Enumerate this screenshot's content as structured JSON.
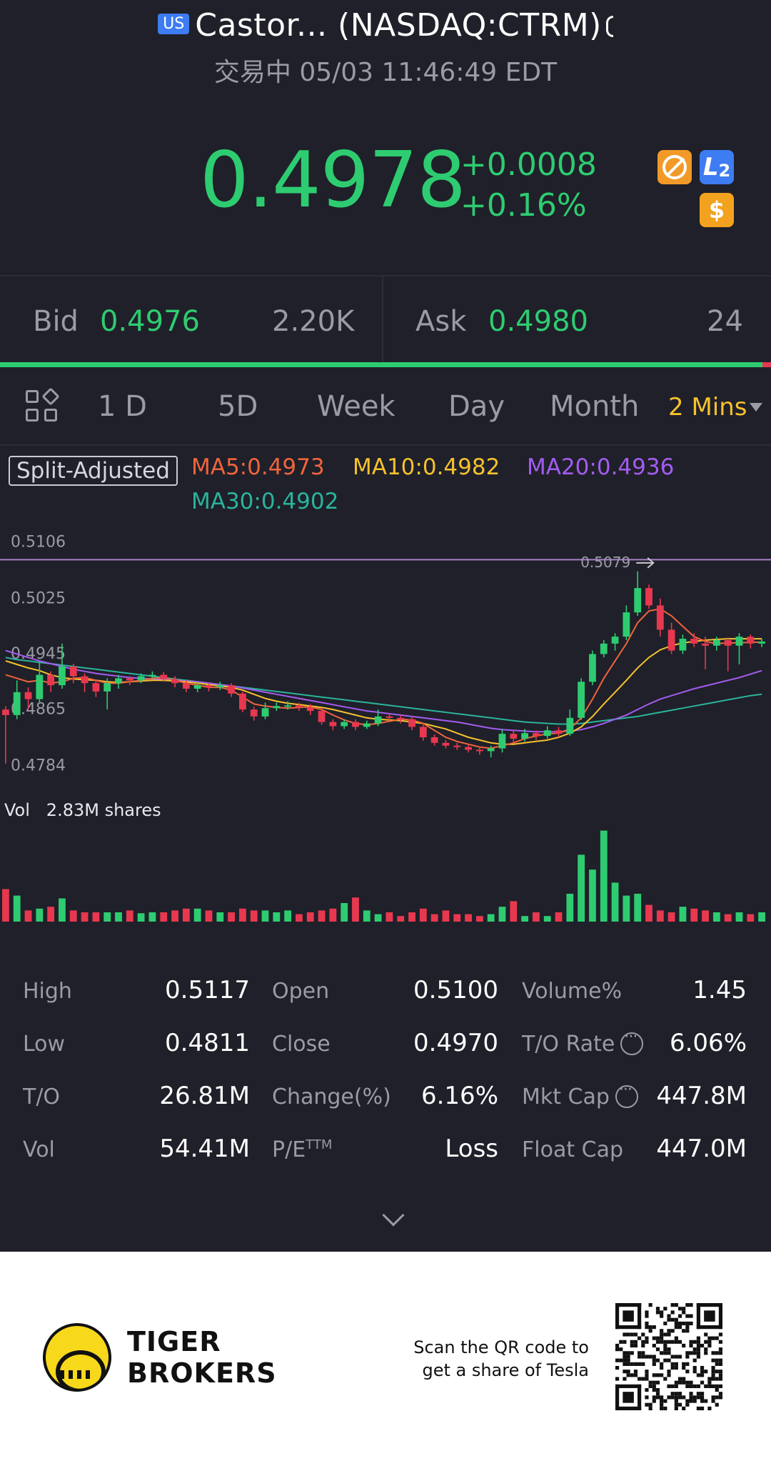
{
  "header": {
    "market_badge": "US",
    "title": "Castor... (NASDAQ:CTRM)",
    "status": "交易中 05/03 11:46:49 EDT",
    "price": "0.4978",
    "change_abs": "+0.0008",
    "change_pct": "+0.16%",
    "icons": [
      "no-margin-icon",
      "level2-icon",
      "dollar-icon"
    ],
    "l2_label": "L",
    "l2_sub": "2",
    "dollar_label": "$"
  },
  "quote": {
    "bid_label": "Bid",
    "bid": "0.4976",
    "bid_size": "2.20K",
    "ask_label": "Ask",
    "ask": "0.4980",
    "ask_size": "24"
  },
  "tabs": {
    "items": [
      "1 D",
      "5D",
      "Week",
      "Day",
      "Month"
    ],
    "active": "2 Mins"
  },
  "indicators": {
    "split_label": "Split-Adjusted",
    "ma5": "MA5:0.4973",
    "ma10": "MA10:0.4982",
    "ma20": "MA20:0.4936",
    "ma30": "MA30:0.4902"
  },
  "colors": {
    "up": "#2ecc71",
    "down": "#e8384f",
    "ma5": "#f0643c",
    "ma10": "#f5c12e",
    "ma20": "#a45cf0",
    "ma30": "#2bb39b",
    "accent": "#f5c12e"
  },
  "chart_data": {
    "type": "candlestick",
    "y_ticks": [
      "0.5106",
      "0.5025",
      "0.4945",
      "0.4865",
      "0.4784"
    ],
    "ylim": [
      0.477,
      0.512
    ],
    "high_marker": "0.5079",
    "low_marker": "0.4811",
    "reference_line": 0.5096,
    "volume_label": "Vol",
    "volume_value": "2.83M shares",
    "candles": [
      [
        0.488,
        0.4872,
        0.4885,
        0.4802
      ],
      [
        0.4872,
        0.4905,
        0.4922,
        0.4866
      ],
      [
        0.4905,
        0.4895,
        0.4912,
        0.488
      ],
      [
        0.4895,
        0.493,
        0.4948,
        0.489
      ],
      [
        0.493,
        0.4915,
        0.4935,
        0.4905
      ],
      [
        0.4915,
        0.4942,
        0.4975,
        0.491
      ],
      [
        0.4942,
        0.4928,
        0.4946,
        0.4918
      ],
      [
        0.4928,
        0.4918,
        0.4932,
        0.4905
      ],
      [
        0.4918,
        0.4906,
        0.4922,
        0.4898
      ],
      [
        0.4906,
        0.4918,
        0.4925,
        0.488
      ],
      [
        0.4918,
        0.4925,
        0.493,
        0.491
      ],
      [
        0.4925,
        0.4922,
        0.4928,
        0.4915
      ],
      [
        0.4922,
        0.4928,
        0.4932,
        0.4918
      ],
      [
        0.4928,
        0.493,
        0.4935,
        0.4925
      ],
      [
        0.493,
        0.4924,
        0.4934,
        0.492
      ],
      [
        0.4924,
        0.4918,
        0.4928,
        0.4912
      ],
      [
        0.4918,
        0.491,
        0.4922,
        0.4905
      ],
      [
        0.491,
        0.4915,
        0.492,
        0.4905
      ],
      [
        0.4915,
        0.4912,
        0.4918,
        0.4906
      ],
      [
        0.4912,
        0.4915,
        0.492,
        0.4908
      ],
      [
        0.4915,
        0.4903,
        0.4918,
        0.4898
      ],
      [
        0.4903,
        0.488,
        0.4906,
        0.4876
      ],
      [
        0.488,
        0.487,
        0.4884,
        0.4864
      ],
      [
        0.487,
        0.4882,
        0.489,
        0.4866
      ],
      [
        0.4882,
        0.4885,
        0.489,
        0.4878
      ],
      [
        0.4885,
        0.4886,
        0.4892,
        0.488
      ],
      [
        0.4886,
        0.4883,
        0.489,
        0.4878
      ],
      [
        0.4883,
        0.4878,
        0.4888,
        0.4872
      ],
      [
        0.4878,
        0.4862,
        0.4882,
        0.4858
      ],
      [
        0.4862,
        0.4856,
        0.4866,
        0.485
      ],
      [
        0.4856,
        0.4862,
        0.4866,
        0.4852
      ],
      [
        0.4862,
        0.4855,
        0.4866,
        0.485
      ],
      [
        0.4855,
        0.486,
        0.4864,
        0.4852
      ],
      [
        0.486,
        0.487,
        0.488,
        0.4856
      ],
      [
        0.487,
        0.4868,
        0.4874,
        0.4864
      ],
      [
        0.4868,
        0.4866,
        0.4872,
        0.486
      ],
      [
        0.4866,
        0.4855,
        0.487,
        0.485
      ],
      [
        0.4855,
        0.484,
        0.4858,
        0.4835
      ],
      [
        0.484,
        0.4832,
        0.4844,
        0.4828
      ],
      [
        0.4832,
        0.4828,
        0.4836,
        0.4824
      ],
      [
        0.4828,
        0.4826,
        0.4832,
        0.4822
      ],
      [
        0.4826,
        0.4822,
        0.483,
        0.4818
      ],
      [
        0.4822,
        0.482,
        0.4826,
        0.4815
      ],
      [
        0.482,
        0.4824,
        0.4828,
        0.4811
      ],
      [
        0.4824,
        0.4845,
        0.4852,
        0.4818
      ],
      [
        0.4845,
        0.4838,
        0.485,
        0.4832
      ],
      [
        0.4838,
        0.4846,
        0.4852,
        0.4834
      ],
      [
        0.4846,
        0.4842,
        0.485,
        0.4836
      ],
      [
        0.4842,
        0.485,
        0.4856,
        0.4838
      ],
      [
        0.485,
        0.4845,
        0.4855,
        0.484
      ],
      [
        0.4845,
        0.4868,
        0.488,
        0.4842
      ],
      [
        0.4868,
        0.492,
        0.4925,
        0.4865
      ],
      [
        0.492,
        0.496,
        0.4965,
        0.4915
      ],
      [
        0.496,
        0.4975,
        0.498,
        0.4955
      ],
      [
        0.4975,
        0.4985,
        0.499,
        0.4965
      ],
      [
        0.4985,
        0.502,
        0.503,
        0.498
      ],
      [
        0.502,
        0.5055,
        0.5079,
        0.5015
      ],
      [
        0.5055,
        0.503,
        0.506,
        0.5025
      ],
      [
        0.503,
        0.4995,
        0.504,
        0.4985
      ],
      [
        0.4995,
        0.4965,
        0.5005,
        0.496
      ],
      [
        0.4965,
        0.4982,
        0.4988,
        0.496
      ],
      [
        0.4982,
        0.4975,
        0.499,
        0.497
      ],
      [
        0.4975,
        0.4972,
        0.4985,
        0.4938
      ],
      [
        0.4972,
        0.498,
        0.4985,
        0.4965
      ],
      [
        0.498,
        0.4972,
        0.4984,
        0.4935
      ],
      [
        0.4972,
        0.4985,
        0.499,
        0.4945
      ],
      [
        0.4985,
        0.4975,
        0.4988,
        0.4968
      ],
      [
        0.4975,
        0.4978,
        0.4982,
        0.497
      ]
    ],
    "volumes": [
      0.35,
      0.28,
      0.12,
      0.14,
      0.16,
      0.25,
      0.12,
      0.1,
      0.1,
      0.1,
      0.1,
      0.12,
      0.09,
      0.1,
      0.1,
      0.12,
      0.14,
      0.14,
      0.12,
      0.1,
      0.1,
      0.14,
      0.12,
      0.12,
      0.1,
      0.12,
      0.08,
      0.1,
      0.12,
      0.14,
      0.2,
      0.26,
      0.12,
      0.08,
      0.1,
      0.06,
      0.1,
      0.14,
      0.08,
      0.12,
      0.08,
      0.08,
      0.06,
      0.08,
      0.16,
      0.22,
      0.06,
      0.1,
      0.06,
      0.1,
      0.3,
      0.72,
      0.56,
      0.98,
      0.42,
      0.28,
      0.3,
      0.18,
      0.12,
      0.1,
      0.16,
      0.14,
      0.12,
      0.1,
      0.08,
      0.1,
      0.08,
      0.1
    ],
    "ma5": [
      0.493,
      0.4925,
      0.492,
      0.4922,
      0.4918,
      0.492,
      0.4925,
      0.4926,
      0.4922,
      0.4918,
      0.4918,
      0.492,
      0.4922,
      0.4925,
      0.4926,
      0.4922,
      0.4918,
      0.4915,
      0.4912,
      0.4912,
      0.4908,
      0.4898,
      0.4888,
      0.4885,
      0.4883,
      0.4882,
      0.4883,
      0.4884,
      0.488,
      0.4872,
      0.4865,
      0.486,
      0.4858,
      0.486,
      0.4863,
      0.4866,
      0.4865,
      0.486,
      0.485,
      0.484,
      0.4834,
      0.483,
      0.4826,
      0.4824,
      0.4828,
      0.4832,
      0.4838,
      0.4842,
      0.4845,
      0.4846,
      0.4852,
      0.4868,
      0.4895,
      0.4925,
      0.495,
      0.4975,
      0.5005,
      0.5022,
      0.5025,
      0.5015,
      0.5,
      0.4985,
      0.4978,
      0.4975,
      0.4976,
      0.4976,
      0.4977,
      0.4977
    ],
    "ma10": [
      0.495,
      0.4945,
      0.494,
      0.4936,
      0.493,
      0.4926,
      0.4924,
      0.4923,
      0.4922,
      0.492,
      0.4919,
      0.492,
      0.4921,
      0.4922,
      0.4922,
      0.4921,
      0.492,
      0.4918,
      0.4916,
      0.4914,
      0.4912,
      0.4908,
      0.4902,
      0.4896,
      0.4892,
      0.4889,
      0.4887,
      0.4885,
      0.4883,
      0.488,
      0.4876,
      0.4872,
      0.4868,
      0.4866,
      0.4865,
      0.4864,
      0.4862,
      0.486,
      0.4856,
      0.4852,
      0.4846,
      0.484,
      0.4836,
      0.4832,
      0.483,
      0.483,
      0.4832,
      0.4834,
      0.4836,
      0.484,
      0.4846,
      0.4855,
      0.487,
      0.4888,
      0.4905,
      0.4922,
      0.494,
      0.4955,
      0.4966,
      0.4972,
      0.4976,
      0.4978,
      0.498,
      0.4981,
      0.4982,
      0.4982,
      0.4982,
      0.4982
    ],
    "ma20": [
      0.4965,
      0.496,
      0.4955,
      0.495,
      0.4946,
      0.4942,
      0.4938,
      0.4935,
      0.4932,
      0.493,
      0.4928,
      0.4926,
      0.4925,
      0.4924,
      0.4923,
      0.4922,
      0.4921,
      0.492,
      0.4918,
      0.4916,
      0.4914,
      0.4911,
      0.4908,
      0.4905,
      0.4902,
      0.4899,
      0.4896,
      0.4893,
      0.489,
      0.4887,
      0.4884,
      0.4881,
      0.4878,
      0.4876,
      0.4874,
      0.4872,
      0.487,
      0.4868,
      0.4866,
      0.4864,
      0.4862,
      0.4859,
      0.4856,
      0.4853,
      0.4851,
      0.485,
      0.4849,
      0.4848,
      0.4848,
      0.4848,
      0.4849,
      0.4851,
      0.4855,
      0.486,
      0.4866,
      0.4872,
      0.488,
      0.4888,
      0.4895,
      0.49,
      0.4905,
      0.491,
      0.4914,
      0.4918,
      0.4922,
      0.4926,
      0.4931,
      0.4936
    ],
    "ma30": [
      0.4955,
      0.4952,
      0.495,
      0.4948,
      0.4946,
      0.4944,
      0.4942,
      0.494,
      0.4938,
      0.4936,
      0.4934,
      0.4932,
      0.493,
      0.4928,
      0.4926,
      0.4924,
      0.4922,
      0.492,
      0.4918,
      0.4916,
      0.4914,
      0.4912,
      0.491,
      0.4908,
      0.4906,
      0.4904,
      0.4902,
      0.49,
      0.4898,
      0.4896,
      0.4894,
      0.4892,
      0.489,
      0.4888,
      0.4886,
      0.4884,
      0.4882,
      0.488,
      0.4878,
      0.4876,
      0.4874,
      0.4872,
      0.487,
      0.4868,
      0.4866,
      0.4864,
      0.4862,
      0.4861,
      0.486,
      0.4859,
      0.4859,
      0.486,
      0.4862,
      0.4864,
      0.4866,
      0.4868,
      0.487,
      0.4873,
      0.4876,
      0.4879,
      0.4882,
      0.4885,
      0.4888,
      0.4891,
      0.4894,
      0.4897,
      0.49,
      0.4902
    ]
  },
  "stats": [
    {
      "label": "High",
      "value": "0.5117"
    },
    {
      "label": "Low",
      "value": "0.4811"
    },
    {
      "label": "T/O",
      "value": "26.81M"
    },
    {
      "label": "Vol",
      "value": "54.41M"
    },
    {
      "label": "Open",
      "value": "0.5100"
    },
    {
      "label": "Close",
      "value": "0.4970"
    },
    {
      "label": "Change(%)",
      "value": "6.16%"
    },
    {
      "label": "P/E",
      "label_sup": "TTM",
      "value": "Loss"
    },
    {
      "label": "Volume%",
      "value": "1.45"
    },
    {
      "label": "T/O Rate",
      "value": "6.06%"
    },
    {
      "label": "Mkt Cap",
      "value": "447.8M"
    },
    {
      "label": "Float Cap",
      "value": "447.0M"
    }
  ],
  "footer": {
    "brand_line1": "TIGER",
    "brand_line2": "BROKERS",
    "qr_line1": "Scan the QR code to",
    "qr_line2": "get a share of Tesla"
  }
}
